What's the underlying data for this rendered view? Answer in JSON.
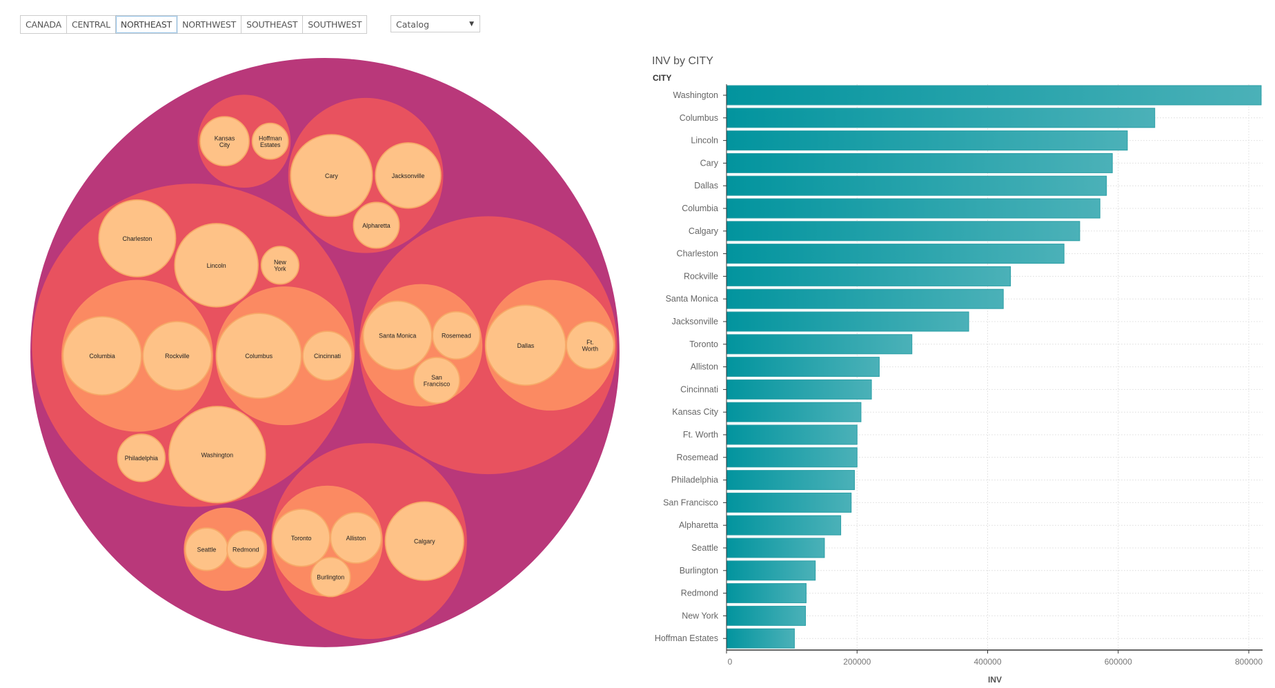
{
  "tabs": [
    {
      "label": "CANADA",
      "active": false
    },
    {
      "label": "CENTRAL",
      "active": false
    },
    {
      "label": "NORTHEAST",
      "active": true
    },
    {
      "label": "NORTHWEST",
      "active": false
    },
    {
      "label": "SOUTHEAST",
      "active": false
    },
    {
      "label": "SOUTHWEST",
      "active": false
    }
  ],
  "dropdown": {
    "value": "Catalog",
    "icon": "triangle-down-icon"
  },
  "colors": {
    "outer": "#b9387a",
    "group": "#e8525f",
    "subgroup": "#fb8a62",
    "leaf": "#fec287",
    "leaf_stroke": "#f7a968",
    "bar_start": "#02949e",
    "bar_end": "#4bb1b8"
  },
  "circle_pack": {
    "groups": [
      {
        "leaves": [
          "Kansas City",
          "Hoffman Estates"
        ]
      },
      {
        "leaves": [
          "Cary",
          "Jacksonville",
          "Alpharetta"
        ]
      },
      {
        "leaves": [
          "Charleston",
          "Lincoln",
          "New York",
          "Philadelphia",
          "Washington"
        ],
        "subgroups": [
          [
            "Columbia",
            "Rockville"
          ],
          [
            "Columbus",
            "Cincinnati"
          ]
        ]
      },
      {
        "subgroups": [
          [
            "Santa Monica",
            "Rosemead",
            "San Francisco"
          ],
          [
            "Dallas",
            "Ft. Worth"
          ]
        ]
      },
      {
        "leaves": [
          "Calgary"
        ],
        "subgroups": [
          [
            "Toronto",
            "Alliston",
            "Burlington"
          ]
        ]
      },
      {
        "subgroups": [
          [
            "Seattle",
            "Redmond"
          ]
        ]
      }
    ]
  },
  "chart_data": {
    "type": "bar",
    "orientation": "horizontal",
    "title": "INV by CITY",
    "ylabel": "CITY",
    "xlabel": "INV",
    "xlim": [
      0,
      820000
    ],
    "xticks": [
      "0",
      "200000",
      "400000",
      "600000",
      "800000"
    ],
    "grid": true,
    "categories": [
      "Washington",
      "Columbus",
      "Lincoln",
      "Cary",
      "Dallas",
      "Columbia",
      "Calgary",
      "Charleston",
      "Rockville",
      "Santa Monica",
      "Jacksonville",
      "Toronto",
      "Alliston",
      "Cincinnati",
      "Kansas City",
      "Ft. Worth",
      "Rosemead",
      "Philadelphia",
      "San Francisco",
      "Alpharetta",
      "Seattle",
      "Burlington",
      "Redmond",
      "New York",
      "Hoffman Estates"
    ],
    "values": [
      819000,
      656000,
      614000,
      591000,
      582000,
      572000,
      541000,
      517000,
      435000,
      424000,
      371000,
      284000,
      234000,
      222000,
      206000,
      200000,
      200000,
      196000,
      191000,
      175000,
      150000,
      136000,
      122000,
      121000,
      104000
    ]
  }
}
